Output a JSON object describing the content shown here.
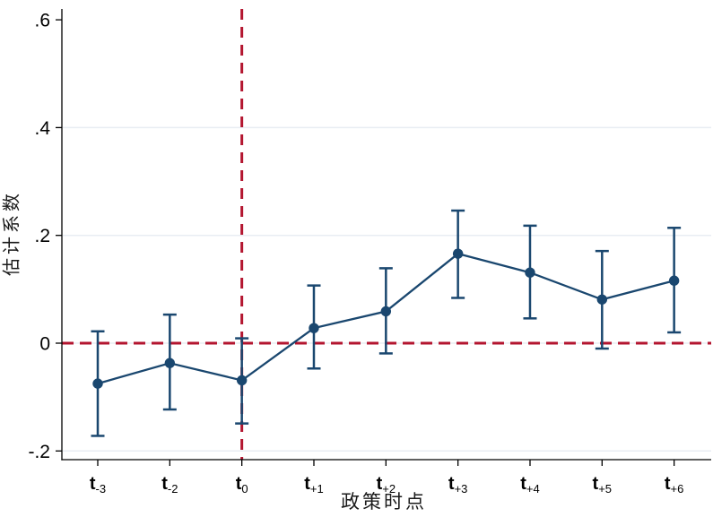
{
  "chart_data": {
    "type": "line",
    "subtype": "event-study coefficient plot with 95% confidence intervals",
    "title": "",
    "xlabel": "政策时点",
    "ylabel": "估计系数",
    "x_categories": [
      "t-3",
      "t-2",
      "t0",
      "t+1",
      "t+2",
      "t+3",
      "t+4",
      "t+5",
      "t+6"
    ],
    "x_tick_rich": [
      {
        "base": "t",
        "sub": "-3"
      },
      {
        "base": "t",
        "sub": "-2"
      },
      {
        "base": "t",
        "sub": "0"
      },
      {
        "base": "t",
        "sub": "+1"
      },
      {
        "base": "t",
        "sub": "+2"
      },
      {
        "base": "t",
        "sub": "+3"
      },
      {
        "base": "t",
        "sub": "+4"
      },
      {
        "base": "t",
        "sub": "+5"
      },
      {
        "base": "t",
        "sub": "+6"
      }
    ],
    "series": [
      {
        "name": "估计系数",
        "values": [
          -0.075,
          -0.037,
          -0.069,
          0.028,
          0.059,
          0.166,
          0.131,
          0.081,
          0.116
        ],
        "ci_low": [
          -0.172,
          -0.123,
          -0.149,
          -0.047,
          -0.019,
          0.084,
          0.046,
          -0.01,
          0.02
        ],
        "ci_high": [
          0.022,
          0.053,
          0.009,
          0.107,
          0.139,
          0.246,
          0.218,
          0.171,
          0.214
        ]
      }
    ],
    "y_ticks": [
      {
        "value": -0.2,
        "label": "-.2",
        "grid": true
      },
      {
        "value": 0,
        "label": "0",
        "grid": true
      },
      {
        "value": 0.2,
        "label": ".2",
        "grid": true
      },
      {
        "value": 0.4,
        "label": ".4",
        "grid": true
      },
      {
        "value": 0.6,
        "label": ".6",
        "grid": false
      }
    ],
    "ylim": [
      -0.22,
      0.62
    ],
    "grid": "horizontal-light",
    "legend": "none",
    "reference_lines": [
      {
        "orientation": "horizontal",
        "at": 0,
        "style": "dashed"
      },
      {
        "orientation": "vertical",
        "at_category": "t0",
        "style": "dashed"
      }
    ],
    "colors": {
      "series": "#1a476f",
      "reference": "#b3152f",
      "gridline": "#e8edf3",
      "axis": "#000000",
      "background": "#ffffff"
    }
  }
}
